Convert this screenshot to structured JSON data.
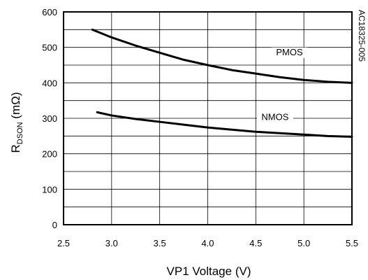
{
  "chart_data": {
    "type": "line",
    "xlabel": "VP1 Voltage (V)",
    "ylabel": {
      "main": "R",
      "sub": "DSON",
      "unit": " (mΩ)"
    },
    "xlim": [
      2.5,
      5.5
    ],
    "ylim": [
      0,
      600
    ],
    "xticks": [
      "2.5",
      "3.0",
      "3.5",
      "4.0",
      "4.5",
      "5.0",
      "5.5"
    ],
    "yticks": [
      "0",
      "100",
      "200",
      "300",
      "400",
      "500",
      "600"
    ],
    "grid": true,
    "figure_id": "AC18325-005",
    "series": [
      {
        "name": "PMOS",
        "x": [
          2.8,
          3.0,
          3.25,
          3.5,
          3.75,
          4.0,
          4.25,
          4.5,
          4.75,
          5.0,
          5.25,
          5.5
        ],
        "y": [
          550,
          528,
          505,
          485,
          465,
          450,
          436,
          426,
          416,
          408,
          403,
          400
        ]
      },
      {
        "name": "NMOS",
        "x": [
          2.85,
          3.0,
          3.25,
          3.5,
          3.75,
          4.0,
          4.25,
          4.5,
          4.75,
          5.0,
          5.25,
          5.5
        ],
        "y": [
          317,
          308,
          298,
          290,
          282,
          274,
          268,
          262,
          258,
          254,
          250,
          248
        ]
      }
    ]
  }
}
